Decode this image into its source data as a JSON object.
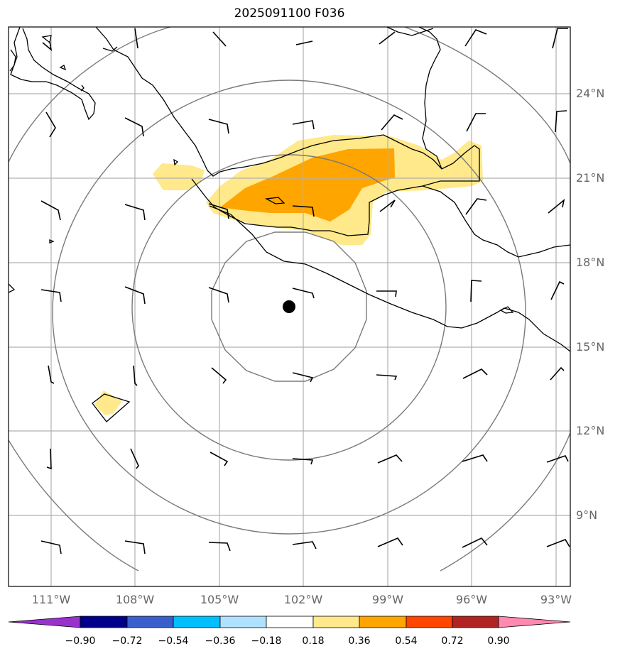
{
  "title": "2025091100 F036",
  "lon_labels": [
    "111°W",
    "108°W",
    "105°W",
    "102°W",
    "99°W",
    "96°W",
    "93°W"
  ],
  "lat_labels": [
    "24°N",
    "21°N",
    "18°N",
    "15°N",
    "12°N",
    "9°N"
  ],
  "colorbar": {
    "ticks": [
      "−0.90",
      "−0.72",
      "−0.54",
      "−0.36",
      "−0.18",
      "0.18",
      "0.36",
      "0.54",
      "0.72",
      "0.90"
    ],
    "colors": [
      "#9932cc",
      "#00008b",
      "#3a5fcd",
      "#00bfff",
      "#b0e2ff",
      "#ffffff",
      "#ffe98a",
      "#ffa500",
      "#ff4500",
      "#b22222",
      "#ff89b0"
    ]
  },
  "storm_center": {
    "lon": -102.5,
    "lat": 16.4
  }
}
